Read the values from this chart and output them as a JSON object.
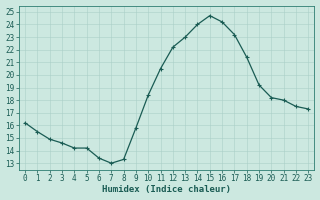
{
  "x": [
    0,
    1,
    2,
    3,
    4,
    5,
    6,
    7,
    8,
    9,
    10,
    11,
    12,
    13,
    14,
    15,
    16,
    17,
    18,
    19,
    20,
    21,
    22,
    23
  ],
  "y": [
    16.2,
    15.5,
    14.9,
    14.6,
    14.2,
    14.2,
    13.4,
    13.0,
    13.3,
    15.8,
    18.4,
    20.5,
    22.2,
    23.0,
    24.0,
    24.7,
    24.2,
    23.2,
    21.4,
    19.2,
    18.2,
    18.0,
    17.5,
    17.3
  ],
  "line_color": "#2e7d72",
  "marker": "+",
  "marker_size": 3,
  "bg_color": "#cce8e0",
  "grid_color": "#aacfc8",
  "xlabel": "Humidex (Indice chaleur)",
  "xlim": [
    -0.5,
    23.5
  ],
  "ylim": [
    12.5,
    25.5
  ],
  "yticks": [
    13,
    14,
    15,
    16,
    17,
    18,
    19,
    20,
    21,
    22,
    23,
    24,
    25
  ],
  "xticks": [
    0,
    1,
    2,
    3,
    4,
    5,
    6,
    7,
    8,
    9,
    10,
    11,
    12,
    13,
    14,
    15,
    16,
    17,
    18,
    19,
    20,
    21,
    22,
    23
  ],
  "tick_label_size": 5.5,
  "xlabel_size": 6.5,
  "line_color_dark": "#1a5c54",
  "spine_color": "#2e7d72"
}
